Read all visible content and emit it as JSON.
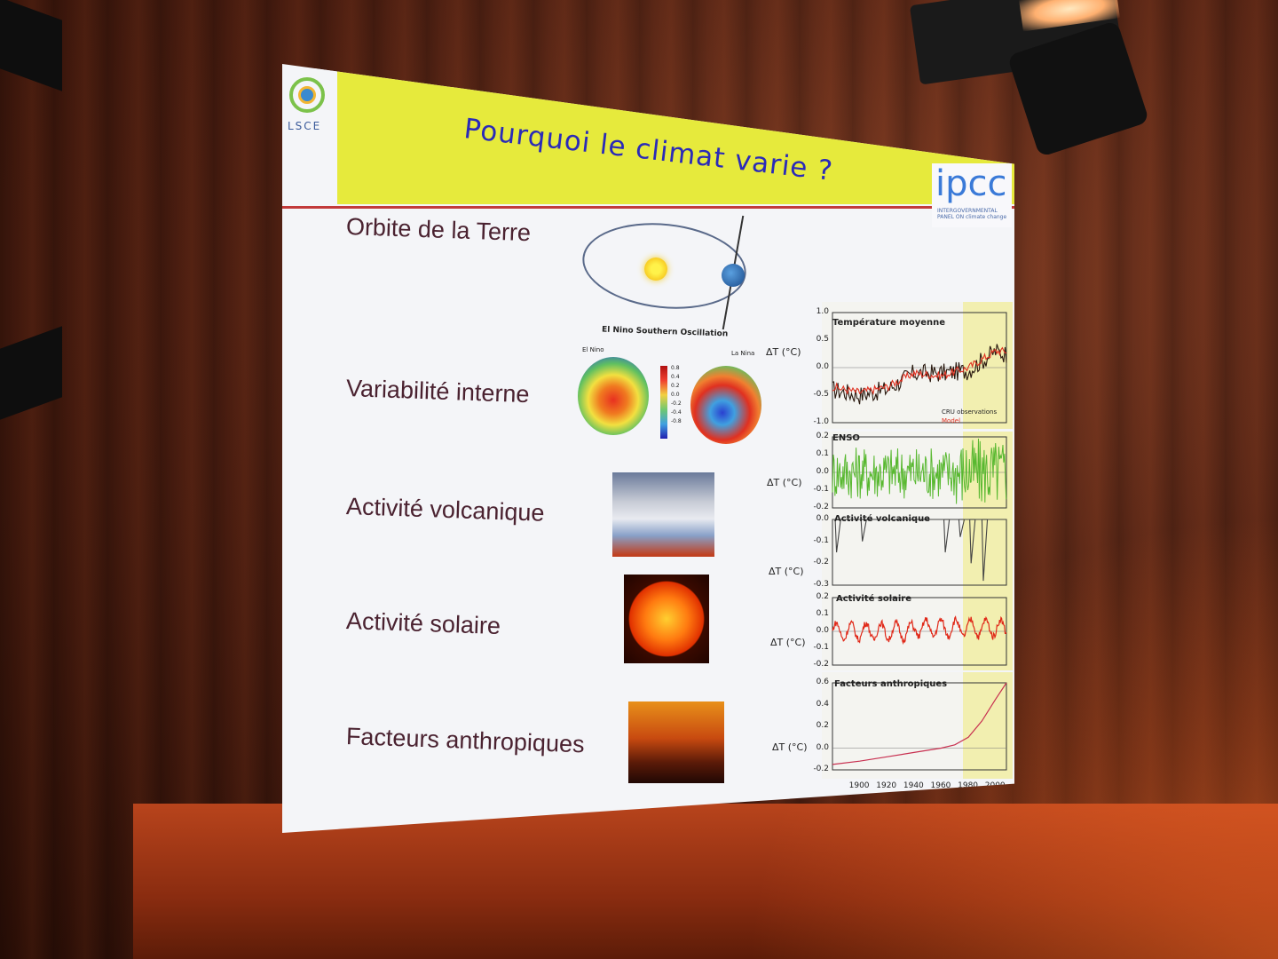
{
  "slide": {
    "title": "Pourquoi le climat varie ?",
    "logo_left": "LSCE",
    "logo_right": "ipcc",
    "logo_right_sub": "INTERGOVERNMENTAL PANEL ON climate change"
  },
  "rows": [
    {
      "label": "Orbite de la Terre"
    },
    {
      "label": "Variabilité interne"
    },
    {
      "label": "Activité volcanique"
    },
    {
      "label": "Activité solaire"
    },
    {
      "label": "Facteurs anthropiques"
    }
  ],
  "enso_figure": {
    "title": "El Nino Southern Oscillation",
    "left_label": "El Nino",
    "right_label": "La Nina",
    "colorbar_ticks": [
      "0.8",
      "0.4",
      "0.2",
      "0.0",
      "-0.2",
      "-0.4",
      "-0.8"
    ]
  },
  "chart_data": {
    "type": "line",
    "x_ticks": [
      "1900",
      "1920",
      "1940",
      "1960",
      "1980",
      "2000"
    ],
    "y_unit_label": "ΔT (°C)",
    "panels": [
      {
        "title": "Température moyenne",
        "yticks": [
          "1.0",
          "0.5",
          "0.0",
          "-0.5",
          "-1.0"
        ],
        "ylim": [
          -1.0,
          1.0
        ],
        "legend": [
          "CRU observations",
          "Model"
        ],
        "series_colors": [
          "#2a1a10",
          "#e03020"
        ],
        "x": [
          1880,
          1900,
          1920,
          1940,
          1960,
          1980,
          2000,
          2008
        ],
        "obs": [
          -0.4,
          -0.5,
          -0.4,
          -0.1,
          -0.1,
          -0.05,
          0.3,
          0.25
        ],
        "model": [
          -0.35,
          -0.45,
          -0.35,
          -0.1,
          -0.15,
          0.0,
          0.3,
          0.3
        ]
      },
      {
        "title": "ENSO",
        "yticks": [
          "0.2",
          "0.1",
          "0.0",
          "-0.1",
          "-0.2"
        ],
        "ylim": [
          -0.2,
          0.2
        ],
        "color": "#58b830"
      },
      {
        "title": "Activité volcanique",
        "yticks": [
          "0.0",
          "-0.1",
          "-0.2",
          "-0.3"
        ],
        "ylim": [
          -0.3,
          0.0
        ],
        "color": "#444444",
        "eruptions": [
          {
            "x": 1883,
            "y": -0.15
          },
          {
            "x": 1902,
            "y": -0.1
          },
          {
            "x": 1963,
            "y": -0.15
          },
          {
            "x": 1974,
            "y": -0.08
          },
          {
            "x": 1982,
            "y": -0.2
          },
          {
            "x": 1991,
            "y": -0.28
          }
        ]
      },
      {
        "title": "Activité solaire",
        "yticks": [
          "0.2",
          "0.1",
          "0.0",
          "-0.1",
          "-0.2"
        ],
        "ylim": [
          -0.2,
          0.2
        ],
        "color": "#e02818"
      },
      {
        "title": "Facteurs anthropiques",
        "yticks": [
          "0.6",
          "0.4",
          "0.2",
          "0.0",
          "-0.2"
        ],
        "ylim": [
          -0.2,
          0.6
        ],
        "color": "#c83050",
        "x": [
          1880,
          1900,
          1920,
          1940,
          1960,
          1970,
          1980,
          1990,
          2000,
          2008
        ],
        "y": [
          -0.15,
          -0.12,
          -0.08,
          -0.04,
          0.0,
          0.03,
          0.1,
          0.25,
          0.45,
          0.6
        ]
      }
    ]
  }
}
